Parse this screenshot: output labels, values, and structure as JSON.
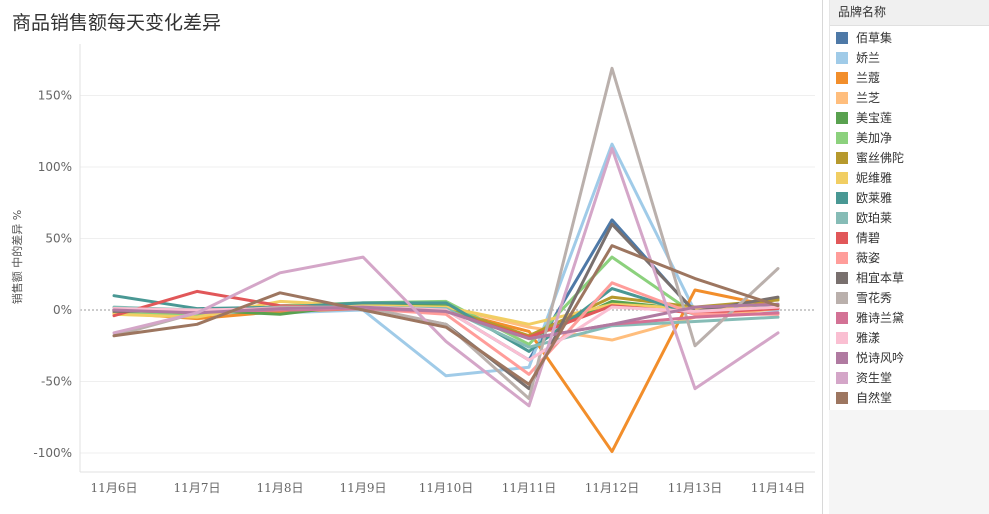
{
  "page": {
    "title": "商品销售额每天变化差异"
  },
  "legend": {
    "title": "品牌名称"
  },
  "chart_data": {
    "type": "line",
    "title": "商品销售额每天变化差异",
    "xlabel": "",
    "ylabel": "销售额 中的差异 %",
    "ylim": [
      -110,
      170
    ],
    "yticks": [
      150,
      100,
      50,
      0,
      -50,
      -100
    ],
    "ytick_labels": [
      "150%",
      "100%",
      "50%",
      "0%",
      "-50%",
      "-100%"
    ],
    "grid": true,
    "legend_position": "right",
    "categories": [
      "11月6日",
      "11月7日",
      "11月8日",
      "11月9日",
      "11月10日",
      "11月11日",
      "11月12日",
      "11月13日",
      "11月14日"
    ],
    "series": [
      {
        "name": "佰草集",
        "color": "#4e79a7",
        "values": [
          0,
          0,
          1,
          1,
          0,
          -35,
          63,
          -2,
          3
        ]
      },
      {
        "name": "娇兰",
        "color": "#a0cbe8",
        "values": [
          1,
          -3,
          -2,
          0,
          -46,
          -40,
          116,
          -1,
          0
        ]
      },
      {
        "name": "兰蔻",
        "color": "#f28e2b",
        "values": [
          -2,
          -6,
          -1,
          1,
          0,
          -15,
          -99,
          14,
          2
        ]
      },
      {
        "name": "兰芝",
        "color": "#ffbe7d",
        "values": [
          0,
          -4,
          2,
          2,
          2,
          -12,
          -21,
          -5,
          1
        ]
      },
      {
        "name": "美宝莲",
        "color": "#59a14f",
        "values": [
          1,
          0,
          -3,
          4,
          3,
          -20,
          6,
          0,
          8
        ]
      },
      {
        "name": "美加净",
        "color": "#8cd17d",
        "values": [
          -1,
          -4,
          3,
          5,
          6,
          -24,
          37,
          -3,
          4
        ]
      },
      {
        "name": "蜜丝佛陀",
        "color": "#b6992d",
        "values": [
          0,
          -2,
          2,
          3,
          1,
          -18,
          9,
          2,
          7
        ]
      },
      {
        "name": "妮维雅",
        "color": "#f1ce63",
        "values": [
          -3,
          -5,
          6,
          3,
          2,
          -10,
          4,
          1,
          2
        ]
      },
      {
        "name": "欧莱雅",
        "color": "#499894",
        "values": [
          10,
          1,
          2,
          5,
          5,
          -29,
          15,
          -3,
          3
        ]
      },
      {
        "name": "欧珀莱",
        "color": "#86bcb6",
        "values": [
          2,
          0,
          1,
          2,
          1,
          -26,
          -11,
          -8,
          -5
        ]
      },
      {
        "name": "倩碧",
        "color": "#e15759",
        "values": [
          -4,
          13,
          3,
          1,
          -1,
          -19,
          3,
          -2,
          1
        ]
      },
      {
        "name": "薇姿",
        "color": "#ff9d9a",
        "values": [
          1,
          -1,
          0,
          1,
          -3,
          -45,
          19,
          -3,
          -3
        ]
      },
      {
        "name": "相宜本草",
        "color": "#79706e",
        "values": [
          -1,
          0,
          1,
          1,
          -10,
          -55,
          60,
          -1,
          9
        ]
      },
      {
        "name": "雪花秀",
        "color": "#bab0ac",
        "values": [
          -18,
          -2,
          2,
          2,
          -10,
          -62,
          169,
          -25,
          29
        ]
      },
      {
        "name": "雅诗兰黛",
        "color": "#d37295",
        "values": [
          0,
          -1,
          0,
          1,
          -1,
          -20,
          -10,
          -5,
          -2
        ]
      },
      {
        "name": "雅漾",
        "color": "#fabfd2",
        "values": [
          1,
          0,
          1,
          2,
          0,
          -35,
          2,
          -1,
          2
        ]
      },
      {
        "name": "悦诗风吟",
        "color": "#b07aa1",
        "values": [
          0,
          -2,
          1,
          2,
          -1,
          -20,
          -10,
          2,
          4
        ]
      },
      {
        "name": "资生堂",
        "color": "#d4a6c8",
        "values": [
          -16,
          -2,
          26,
          37,
          -22,
          -67,
          113,
          -55,
          -16
        ]
      },
      {
        "name": "自然堂",
        "color": "#9d7660",
        "values": [
          -18,
          -10,
          12,
          0,
          -12,
          -52,
          45,
          22,
          3
        ]
      }
    ]
  }
}
